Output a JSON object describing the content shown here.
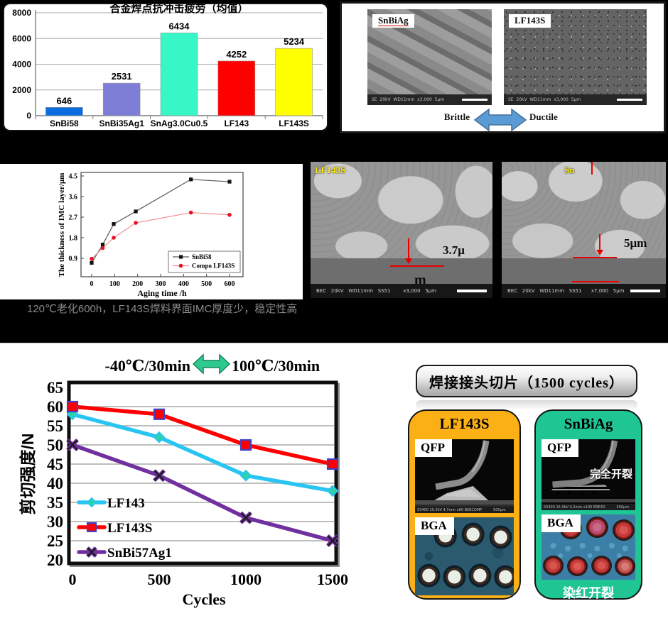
{
  "chart_data": [
    {
      "id": "impact-fatigue-bar",
      "type": "bar",
      "title": "合金焊点抗冲击疲劳（均值）",
      "categories": [
        "SnBi58",
        "SnBi35Ag1",
        "SnAg3.0Cu0.5",
        "LF143",
        "LF143S"
      ],
      "values": [
        646,
        2531,
        6434,
        4252,
        5234
      ],
      "bar_colors": [
        "#0b6ce0",
        "#7e7ed6",
        "#36f7c5",
        "#ff0000",
        "#ffff00"
      ],
      "xlabel": "",
      "ylabel": "",
      "ylim": [
        0,
        8000
      ],
      "yticks": [
        0,
        2000,
        4000,
        6000,
        8000
      ],
      "grid": true
    },
    {
      "id": "imc-thickness-line",
      "type": "line",
      "title": "",
      "xlabel": "Aging time /h",
      "ylabel": "The thickness of IMC layer/μm",
      "xticks": [
        0,
        100,
        200,
        300,
        400,
        500,
        600
      ],
      "yticks": [
        0.9,
        1.8,
        2.7,
        3.6,
        4.5
      ],
      "xlim": [
        -46,
        660
      ],
      "ylim": [
        0.2,
        4.65
      ],
      "legend_position": "lower right",
      "series": [
        {
          "name": "SnBi58",
          "color": "#5a5a5a",
          "marker": "square",
          "marker_color": "#111111",
          "x": [
            0,
            48,
            96,
            192,
            432,
            600
          ],
          "y": [
            0.7,
            1.5,
            2.4,
            2.95,
            4.35,
            4.25
          ]
        },
        {
          "name": "Compo LF143S",
          "color": "#f29090",
          "marker": "circle",
          "marker_color": "#e81123",
          "x": [
            0,
            48,
            96,
            192,
            432,
            600
          ],
          "y": [
            0.88,
            1.35,
            1.8,
            2.45,
            2.9,
            2.8
          ]
        }
      ]
    },
    {
      "id": "shear-strength-line",
      "type": "line",
      "title_left": "-40℃/30min",
      "title_right": "100℃/30min",
      "xlabel": "Cycles",
      "ylabel": "剪切强度/N",
      "xticks": [
        0,
        500,
        1000,
        1500
      ],
      "yticks": [
        20,
        25,
        30,
        35,
        40,
        45,
        50,
        55,
        60,
        65
      ],
      "ylim": [
        20,
        65
      ],
      "xlim": [
        0,
        1500
      ],
      "grid": true,
      "legend_position": "lower left",
      "series": [
        {
          "name": "LF143",
          "color": "#29c5f2",
          "marker": "diamond",
          "marker_fill": "#2bd3a7",
          "marker_stroke": "#29c5f2",
          "x": [
            0,
            500,
            1000,
            1500
          ],
          "y": [
            58,
            52,
            42,
            38
          ]
        },
        {
          "name": "LF143S",
          "color": "#fe0000",
          "marker": "square",
          "marker_fill": "#fe0000",
          "marker_stroke": "#4040c8",
          "x": [
            0,
            500,
            1000,
            1500
          ],
          "y": [
            60,
            58,
            50,
            45
          ]
        },
        {
          "name": "SnBi57Ag1",
          "color": "#7030a0",
          "marker": "xcross",
          "marker_fill": "#7030a0",
          "marker_stroke": "#1a1a1a",
          "x": [
            0,
            500,
            1000,
            1500
          ],
          "y": [
            50,
            42,
            31,
            25
          ]
        }
      ]
    }
  ],
  "fracture_panel": {
    "sem_left_label": "SnBiAg",
    "sem_right_label": "LF143S",
    "sem_left_footer": "SE  20kV  WD11mm  x3,000  5μm",
    "sem_right_footer": "SE  20kV  WD11mm  x3,000  5μm",
    "left_caption": "Brittle",
    "right_caption": "Ductile"
  },
  "imc_sems": {
    "left_label": "LF143S",
    "left_measure_line1": "3.7μ",
    "left_measure_line2": "m",
    "left_footer": "BEC   20kV   WD11mm   SS51        x3,000   5μm",
    "right_label": "Sn",
    "right_measure": "5μm",
    "right_footer": "BEC   20kV   WD11mm   SS51      x7,000   5μm"
  },
  "mid_caption": "120℃老化600h，LF143S焊料界面IMC厚度少，稳定性高",
  "slice_panel": {
    "header": "焊接接头切片（1500 cycles）",
    "cards": [
      {
        "name": "LF143S",
        "theme_color": "#fbb116",
        "qfp_label": "QFP",
        "bga_label": "BGA",
        "qfp_footer": "S3400 15.0kV 4.7mm x80 BSECOMP          500μm"
      },
      {
        "name": "SnBiAg",
        "theme_color": "#1fc593",
        "qfp_label": "QFP",
        "bga_label": "BGA",
        "qfp_note": "完全开裂",
        "bga_note": "染红开裂",
        "qfp_footer": "S3400 15.0kV 4.2mm x100 BSE3D          500μm"
      }
    ]
  }
}
